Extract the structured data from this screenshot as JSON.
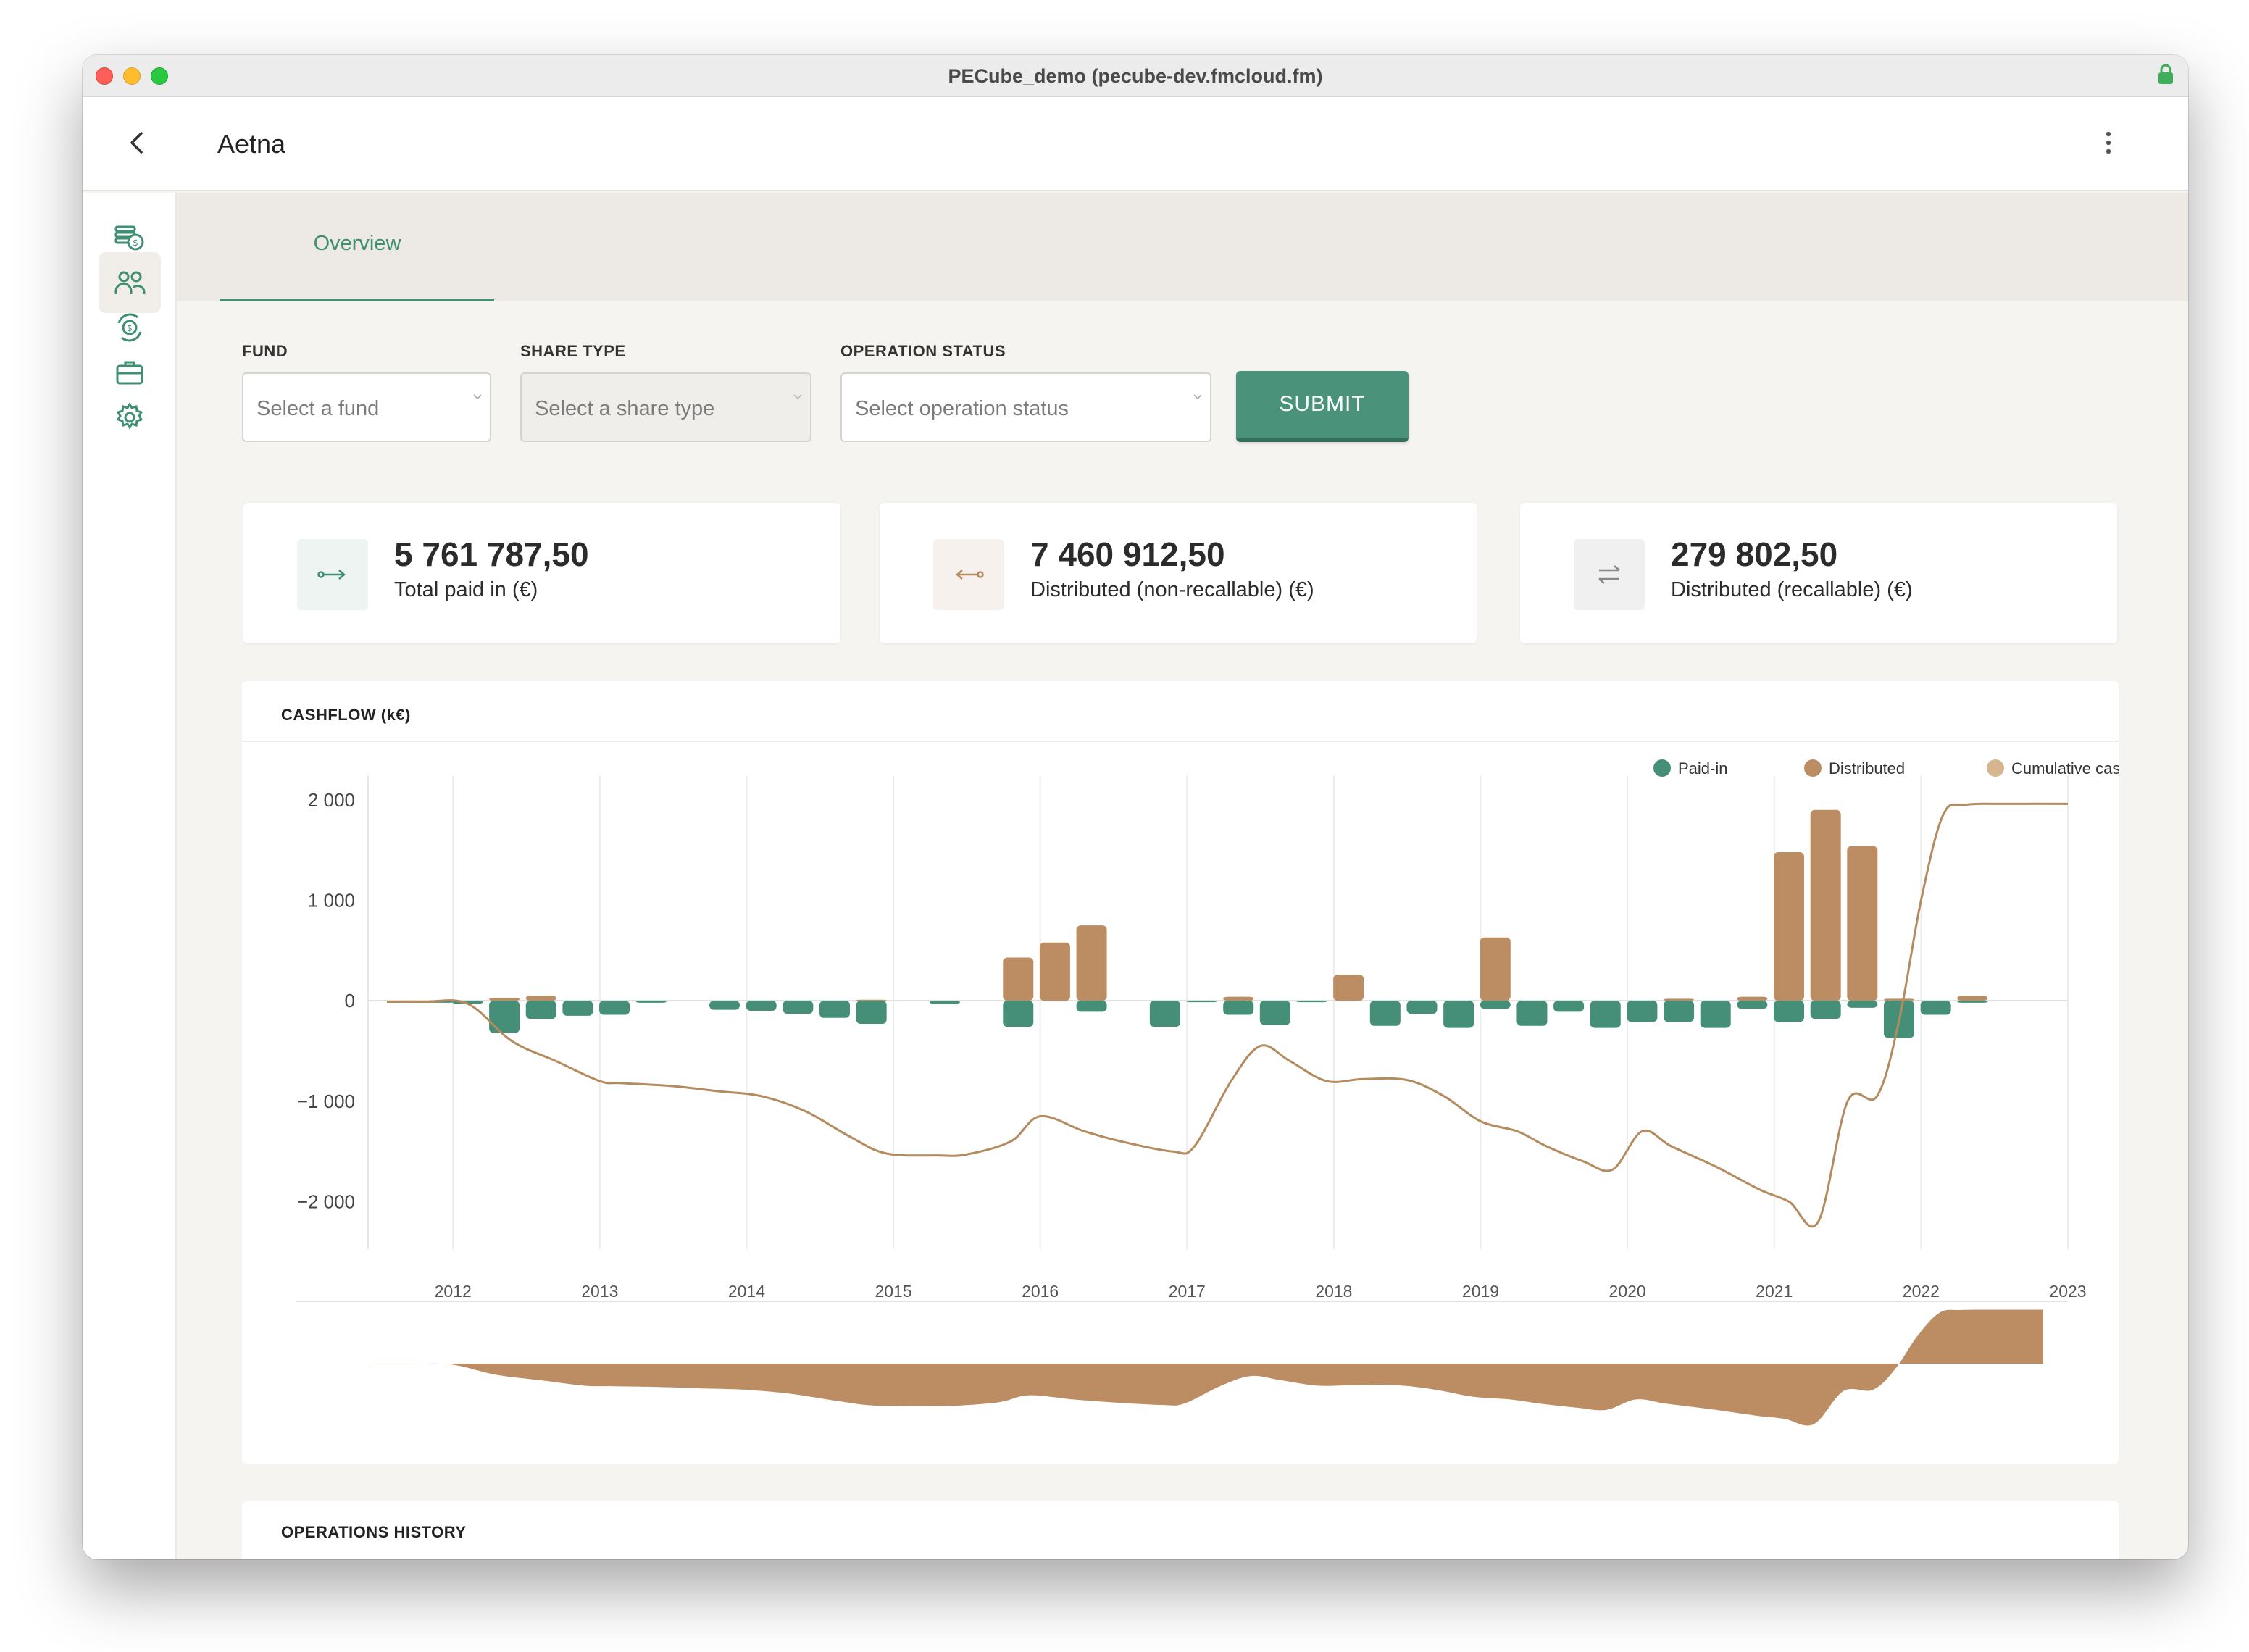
{
  "window": {
    "title": "PECube_demo (pecube-dev.fmcloud.fm)"
  },
  "appbar": {
    "title": "Aetna"
  },
  "sidebar": {
    "items": [
      {
        "name": "sidebar-item-funds",
        "icon": "coins-icon"
      },
      {
        "name": "sidebar-item-investors",
        "icon": "users-icon",
        "active": true
      },
      {
        "name": "sidebar-item-cashflows",
        "icon": "money-cycle-icon"
      },
      {
        "name": "sidebar-item-portfolio",
        "icon": "briefcase-icon"
      },
      {
        "name": "sidebar-item-settings",
        "icon": "gear-icon"
      }
    ]
  },
  "tabs": [
    {
      "label": "Overview",
      "active": true
    }
  ],
  "filters": {
    "fund": {
      "label": "FUND",
      "placeholder": "Select a fund"
    },
    "share_type": {
      "label": "SHARE TYPE",
      "placeholder": "Select a share type",
      "disabled": true
    },
    "operation_status": {
      "label": "OPERATION STATUS",
      "placeholder": "Select operation status"
    },
    "submit_label": "SUBMIT"
  },
  "stats": [
    {
      "value": "5 761 787,50",
      "label": "Total paid in (€)",
      "icon": "arrow-right-icon",
      "color": "#3f8f72"
    },
    {
      "value": "7 460 912,50",
      "label": "Distributed (non-recallable) (€)",
      "icon": "arrow-left-icon",
      "color": "#b48b5e"
    },
    {
      "value": "279 802,50",
      "label": "Distributed (recallable) (€)",
      "icon": "swap-arrows-icon",
      "color": "#888888"
    }
  ],
  "cashflow": {
    "title": "CASHFLOW (k€)"
  },
  "operations": {
    "title": "OPERATIONS HISTORY"
  },
  "colors": {
    "paid_in": "#458f78",
    "distributed": "#bc8d63",
    "cumulative": "#d7b58f",
    "line": "#b48b5e"
  },
  "chart_data": {
    "type": "bar",
    "title": "CASHFLOW (k€)",
    "ylim": [
      -2300,
      2100
    ],
    "y_ticks": [
      2000,
      1000,
      0,
      -1000,
      -2000
    ],
    "y_tick_labels": [
      "2 000",
      "1 000",
      "0",
      "−1 000",
      "−2 000"
    ],
    "x_range": [
      2011.55,
      2023.0
    ],
    "x_ticks": [
      2012,
      2013,
      2014,
      2015,
      2016,
      2017,
      2018,
      2019,
      2020,
      2021,
      2022,
      2023
    ],
    "x_tick_labels": [
      "2012",
      "2013",
      "2014",
      "2015",
      "2016",
      "2017",
      "2018",
      "2019",
      "2020",
      "2021",
      "2022",
      "2023"
    ],
    "grid": true,
    "legend_position": "top-right",
    "legend": [
      "Paid-in",
      "Distributed",
      "Cumulative cashflow"
    ],
    "series": [
      {
        "name": "Paid-in",
        "x": [
          2011.7,
          2011.9,
          2012.1,
          2012.35,
          2012.6,
          2012.85,
          2013.1,
          2013.35,
          2013.85,
          2014.1,
          2014.35,
          2014.6,
          2014.85,
          2015.35,
          2015.85,
          2016.35,
          2016.85,
          2017.1,
          2017.35,
          2017.6,
          2017.85,
          2018.35,
          2018.6,
          2018.85,
          2019.1,
          2019.35,
          2019.6,
          2019.85,
          2020.1,
          2020.35,
          2020.6,
          2020.85,
          2021.1,
          2021.35,
          2021.6,
          2021.85,
          2022.1,
          2022.35
        ],
        "values": [
          -20,
          -20,
          -30,
          -320,
          -180,
          -150,
          -140,
          -20,
          -90,
          -100,
          -130,
          -170,
          -230,
          -30,
          -260,
          -110,
          -260,
          -10,
          -140,
          -240,
          -10,
          -250,
          -130,
          -270,
          -80,
          -250,
          -110,
          -270,
          -210,
          -210,
          -270,
          -80,
          -210,
          -180,
          -70,
          -370,
          -140,
          -20
        ]
      },
      {
        "name": "Distributed",
        "x": [
          2012.35,
          2012.6,
          2014.85,
          2015.85,
          2016.1,
          2016.35,
          2017.35,
          2018.1,
          2019.1,
          2020.35,
          2020.85,
          2021.1,
          2021.35,
          2021.6,
          2021.85,
          2022.35
        ],
        "values": [
          30,
          50,
          10,
          430,
          580,
          750,
          40,
          260,
          630,
          20,
          40,
          1480,
          1900,
          1540,
          20,
          50
        ]
      },
      {
        "name": "Cumulative cashflow",
        "x": [
          2011.55,
          2011.8,
          2012.1,
          2012.4,
          2012.7,
          2013.0,
          2013.15,
          2013.5,
          2013.8,
          2014.1,
          2014.4,
          2014.7,
          2014.95,
          2015.3,
          2015.5,
          2015.8,
          2016.0,
          2016.3,
          2016.55,
          2016.9,
          2017.05,
          2017.3,
          2017.5,
          2017.7,
          2017.95,
          2018.2,
          2018.5,
          2018.75,
          2019.0,
          2019.25,
          2019.45,
          2019.7,
          2019.9,
          2020.1,
          2020.3,
          2020.6,
          2020.9,
          2021.1,
          2021.3,
          2021.5,
          2021.7,
          2021.85,
          2022.0,
          2022.15,
          2022.3,
          2022.6,
          2023.0
        ],
        "values": [
          -10,
          -10,
          -30,
          -400,
          -600,
          -800,
          -820,
          -850,
          -900,
          -950,
          -1100,
          -1350,
          -1520,
          -1540,
          -1530,
          -1400,
          -1150,
          -1300,
          -1400,
          -1500,
          -1450,
          -800,
          -450,
          -600,
          -800,
          -780,
          -790,
          -950,
          -1200,
          -1300,
          -1450,
          -1600,
          -1680,
          -1300,
          -1450,
          -1650,
          -1880,
          -2000,
          -2200,
          -1000,
          -950,
          -200,
          1000,
          1850,
          1950,
          1960,
          1960
        ]
      }
    ],
    "navigator": {
      "x_ticks": [
        2012,
        2013,
        2014,
        2015,
        2016,
        2017,
        2018,
        2019,
        2020,
        2021,
        2022
      ],
      "x_tick_labels": [
        "2012",
        "2013",
        "2014",
        "2015",
        "2016",
        "2017",
        "2018",
        "2019",
        "2020",
        "2021",
        "2022"
      ]
    }
  }
}
